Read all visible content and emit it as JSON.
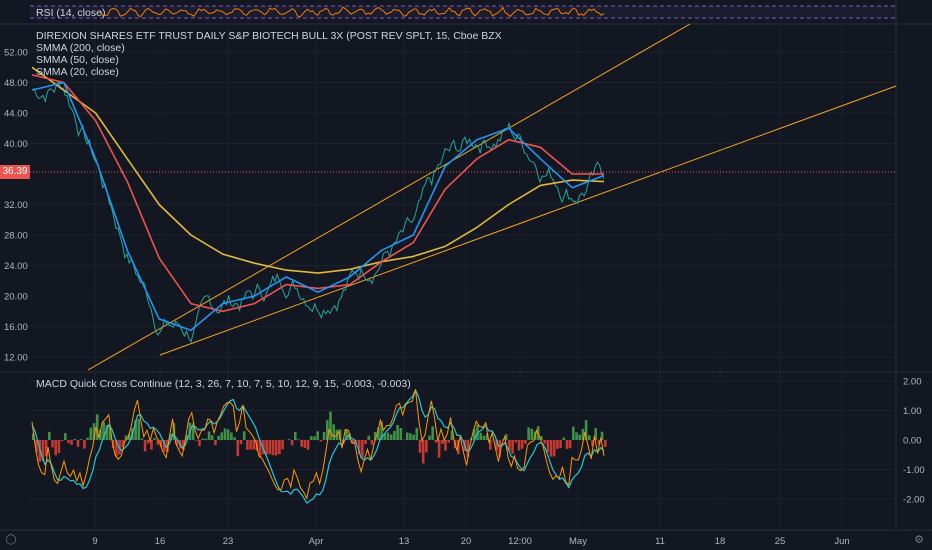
{
  "rsi_panel": {
    "label": "RSI (14, close)"
  },
  "main_panel": {
    "title": "DIREXION SHARES ETF TRUST DAILY S&P BIOTECH BULL 3X (POST REV SPLT, 15, Cboe BZX",
    "indicators": [
      "SMMA (200, close)",
      "SMMA (50, close)",
      "SMMA (20, close)"
    ],
    "current_price_label": "36.39",
    "y_ticks": [
      "52.00",
      "48.00",
      "44.00",
      "40.00",
      "32.00",
      "28.00",
      "24.00",
      "20.00",
      "16.00",
      "12.00"
    ]
  },
  "macd_panel": {
    "label": "MACD Quick Cross Continue (12, 3, 26, 7, 10, 7, 5, 10, 12, 9, 15, -0.003, -0.003)",
    "y_ticks": [
      "2.00",
      "1.00",
      "0.00",
      "-1.00",
      "-2.00"
    ]
  },
  "x_axis": {
    "labels": [
      "9",
      "16",
      "23",
      "Apr",
      "13",
      "20",
      "12:00",
      "May",
      "11",
      "18",
      "25",
      "Jun"
    ]
  },
  "icons": {
    "timezone": "z-icon",
    "settings": "gear-icon"
  },
  "colors": {
    "background": "#131722",
    "price": "#26a69a",
    "smma20": "#2196f3",
    "smma50": "#ef5350",
    "smma200": "#e2b93b",
    "trendline": "#f5a623",
    "macd_up": "#4caf50",
    "macd_down": "#f44336",
    "macd_line": "#ff9800",
    "signal_line": "#26c6da",
    "rsi_line": "#f57c00",
    "rsi_band": "#7e57c2"
  },
  "chart_data": {
    "type": "line",
    "xlabels": [
      "9",
      "16",
      "23",
      "Apr",
      "13",
      "20",
      "12:00",
      "May",
      "11",
      "18",
      "25",
      "Jun"
    ],
    "ylim": [
      10,
      54
    ],
    "current_price": 36.39,
    "series": [
      {
        "name": "SMMA (200, close)",
        "values": [
          50,
          47,
          44,
          38,
          32,
          28,
          25.5,
          24.3,
          23.4,
          23.0,
          23.5,
          24.5,
          25.2,
          26.5,
          29,
          32,
          34.5,
          35.2,
          35.0
        ]
      },
      {
        "name": "SMMA (50, close)",
        "values": [
          49,
          48,
          43,
          35,
          25,
          19,
          18,
          19,
          21.5,
          21.0,
          21.5,
          24.5,
          27,
          34,
          38,
          40.5,
          39.5,
          36,
          36.0
        ]
      },
      {
        "name": "SMMA (20, close)",
        "values": [
          47,
          48,
          38,
          26,
          17,
          15.5,
          19,
          20,
          22.5,
          20.5,
          22.5,
          26,
          28,
          37,
          40.5,
          42,
          38,
          34.2,
          35.8
        ]
      }
    ],
    "macd_ylim": [
      -2.6,
      2.3
    ]
  }
}
